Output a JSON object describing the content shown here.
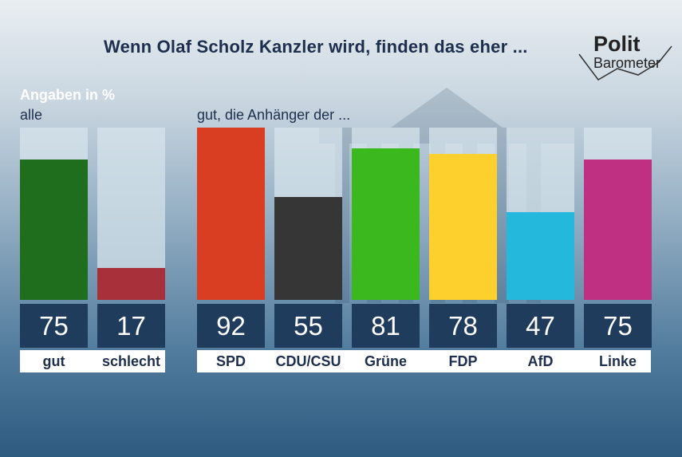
{
  "title": "Wenn Olaf Scholz Kanzler wird, finden das eher ...",
  "logo": {
    "line1": "Polit",
    "line2": "Barometer"
  },
  "unit_label": "Angaben in %",
  "chart_data": [
    {
      "type": "bar",
      "group_label": "alle",
      "categories": [
        "gut",
        "schlecht"
      ],
      "values": [
        75,
        17
      ],
      "colors": [
        "#1e6e1e",
        "#a8303a"
      ],
      "ylim": [
        0,
        92
      ]
    },
    {
      "type": "bar",
      "group_label": "gut, die Anhänger der ...",
      "categories": [
        "SPD",
        "CDU/CSU",
        "Grüne",
        "FDP",
        "AfD",
        "Linke"
      ],
      "values": [
        92,
        55,
        81,
        78,
        47,
        75
      ],
      "colors": [
        "#d93d22",
        "#363636",
        "#3cb81f",
        "#fdd02d",
        "#23b8dc",
        "#c03082"
      ],
      "ylim": [
        0,
        92
      ]
    }
  ]
}
